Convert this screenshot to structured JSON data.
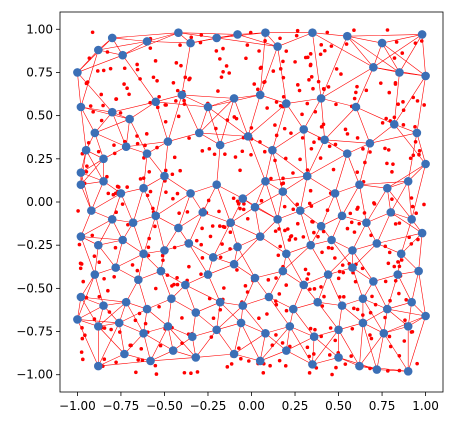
{
  "chart_data": {
    "type": "scatter",
    "title": "",
    "xlabel": "",
    "ylabel": "",
    "xlim": [
      -1.1,
      1.1
    ],
    "ylim": [
      -1.1,
      1.1
    ],
    "grid": false,
    "x_ticks": [
      -1.0,
      -0.75,
      -0.5,
      -0.25,
      0.0,
      0.25,
      0.5,
      0.75,
      1.0
    ],
    "y_ticks": [
      -1.0,
      -0.75,
      -0.5,
      -0.25,
      0.0,
      0.25,
      0.5,
      0.75,
      1.0
    ],
    "x_tick_labels": [
      "−1.00",
      "−0.75",
      "−0.50",
      "−0.25",
      "0.00",
      "0.25",
      "0.50",
      "0.75",
      "1.00"
    ],
    "y_tick_labels": [
      "−1.00",
      "−0.75",
      "−0.50",
      "−0.25",
      "0.00",
      "0.25",
      "0.50",
      "0.75",
      "1.00"
    ],
    "colors": {
      "nodes": "#3b6fb6",
      "mesh": "#ff0000",
      "samples": "#ff0000"
    },
    "series": [
      {
        "kind": "nodes",
        "x": [
          -1.0,
          -0.98,
          -0.88,
          -0.8,
          -0.74,
          -0.6,
          -0.42,
          -0.35,
          -0.2,
          -0.08,
          0.08,
          0.15,
          0.35,
          0.55,
          0.75,
          0.98,
          -0.98,
          -0.9,
          -0.8,
          -0.7,
          -0.55,
          -0.4,
          -0.25,
          -0.1,
          0.05,
          0.2,
          0.4,
          0.6,
          0.7,
          0.85,
          1.0,
          -0.95,
          -0.85,
          -0.72,
          -0.6,
          -0.48,
          -0.3,
          -0.18,
          -0.02,
          0.12,
          0.3,
          0.42,
          0.55,
          0.68,
          0.82,
          0.95,
          -0.98,
          -0.85,
          -0.75,
          -0.62,
          -0.5,
          -0.35,
          -0.2,
          -0.05,
          0.08,
          0.18,
          0.32,
          0.48,
          0.62,
          0.78,
          0.9,
          1.0,
          -0.92,
          -0.8,
          -0.68,
          -0.55,
          -0.42,
          -0.28,
          -0.12,
          0.02,
          0.15,
          0.28,
          0.4,
          0.52,
          0.66,
          0.8,
          0.92,
          -0.98,
          -0.88,
          -0.74,
          -0.62,
          -0.5,
          -0.36,
          -0.22,
          -0.08,
          0.05,
          0.2,
          0.34,
          0.46,
          0.58,
          0.72,
          0.86,
          0.98,
          -0.9,
          -0.78,
          -0.65,
          -0.52,
          -0.38,
          -0.25,
          -0.1,
          0.02,
          0.18,
          0.3,
          0.44,
          0.58,
          0.7,
          0.84,
          0.96,
          -0.98,
          -0.85,
          -0.72,
          -0.6,
          -0.46,
          -0.32,
          -0.18,
          -0.05,
          0.1,
          0.24,
          0.38,
          0.52,
          0.64,
          0.78,
          0.92,
          -1.0,
          -0.88,
          -0.76,
          -0.62,
          -0.48,
          -0.34,
          -0.2,
          -0.06,
          0.08,
          0.22,
          0.36,
          0.5,
          0.64,
          0.76,
          0.9,
          1.0,
          -0.88,
          -0.73,
          -0.58,
          -0.45,
          -0.32,
          -0.1,
          0.05,
          0.2,
          0.35,
          0.5,
          0.62,
          0.72,
          0.9
        ],
        "y": [
          0.75,
          0.55,
          0.88,
          0.95,
          0.85,
          0.93,
          0.98,
          0.92,
          0.95,
          0.97,
          0.98,
          0.9,
          0.98,
          0.96,
          0.92,
          0.97,
          0.17,
          0.4,
          0.52,
          0.48,
          0.58,
          0.62,
          0.55,
          0.6,
          0.62,
          0.57,
          0.6,
          0.55,
          0.78,
          0.75,
          0.73,
          0.3,
          0.25,
          0.32,
          0.28,
          0.35,
          0.4,
          0.33,
          0.38,
          0.3,
          0.42,
          0.36,
          0.28,
          0.34,
          0.45,
          0.4,
          0.1,
          0.12,
          0.05,
          0.08,
          0.15,
          0.05,
          0.1,
          0.02,
          0.12,
          0.06,
          0.15,
          0.05,
          0.1,
          0.08,
          0.12,
          0.22,
          -0.05,
          -0.1,
          -0.12,
          -0.08,
          -0.15,
          -0.06,
          -0.12,
          -0.03,
          -0.1,
          -0.05,
          -0.14,
          -0.08,
          -0.12,
          -0.06,
          -0.1,
          -0.2,
          -0.25,
          -0.22,
          -0.3,
          -0.28,
          -0.24,
          -0.32,
          -0.26,
          -0.2,
          -0.3,
          -0.25,
          -0.22,
          -0.28,
          -0.24,
          -0.3,
          -0.18,
          -0.42,
          -0.38,
          -0.45,
          -0.4,
          -0.48,
          -0.42,
          -0.36,
          -0.44,
          -0.4,
          -0.48,
          -0.42,
          -0.38,
          -0.46,
          -0.42,
          -0.4,
          -0.55,
          -0.6,
          -0.58,
          -0.62,
          -0.56,
          -0.64,
          -0.58,
          -0.6,
          -0.55,
          -0.62,
          -0.58,
          -0.6,
          -0.56,
          -0.62,
          -0.58,
          -0.68,
          -0.72,
          -0.7,
          -0.76,
          -0.72,
          -0.78,
          -0.74,
          -0.7,
          -0.76,
          -0.72,
          -0.78,
          -0.74,
          -0.7,
          -0.76,
          -0.72,
          -0.66,
          -0.95,
          -0.88,
          -0.92,
          -0.86,
          -0.9,
          -0.88,
          -0.92,
          -0.86,
          -0.94,
          -0.9,
          -0.95,
          -0.97,
          -0.98
        ]
      }
    ],
    "samples_count_note_hidden": null
  }
}
